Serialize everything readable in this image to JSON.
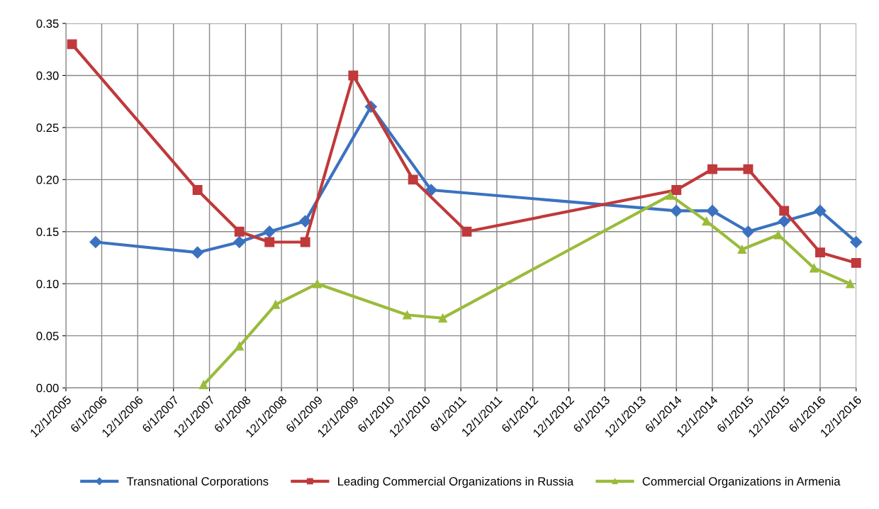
{
  "chart_data": {
    "type": "line",
    "xlim": [
      "2005-12-01",
      "2016-12-01"
    ],
    "xticks": [
      {
        "value": "2005-12-01",
        "label": "12/1/2005"
      },
      {
        "value": "2006-06-01",
        "label": "6/1/2006"
      },
      {
        "value": "2006-12-01",
        "label": "12/1/2006"
      },
      {
        "value": "2007-06-01",
        "label": "6/1/2007"
      },
      {
        "value": "2007-12-01",
        "label": "12/1/2007"
      },
      {
        "value": "2008-06-01",
        "label": "6/1/2008"
      },
      {
        "value": "2008-12-01",
        "label": "12/1/2008"
      },
      {
        "value": "2009-06-01",
        "label": "6/1/2009"
      },
      {
        "value": "2009-12-01",
        "label": "12/1/2009"
      },
      {
        "value": "2010-06-01",
        "label": "6/1/2010"
      },
      {
        "value": "2010-12-01",
        "label": "12/1/2010"
      },
      {
        "value": "2011-06-01",
        "label": "6/1/2011"
      },
      {
        "value": "2011-12-01",
        "label": "12/1/2011"
      },
      {
        "value": "2012-06-01",
        "label": "6/1/2012"
      },
      {
        "value": "2012-12-01",
        "label": "12/1/2012"
      },
      {
        "value": "2013-06-01",
        "label": "6/1/2013"
      },
      {
        "value": "2013-12-01",
        "label": "12/1/2013"
      },
      {
        "value": "2014-06-01",
        "label": "6/1/2014"
      },
      {
        "value": "2014-12-01",
        "label": "12/1/2014"
      },
      {
        "value": "2015-06-01",
        "label": "6/1/2015"
      },
      {
        "value": "2015-12-01",
        "label": "12/1/2015"
      },
      {
        "value": "2016-06-01",
        "label": "6/1/2016"
      },
      {
        "value": "2016-12-01",
        "label": "12/1/2016"
      }
    ],
    "ylim": [
      0,
      0.35
    ],
    "yticks": [
      {
        "value": 0,
        "label": "0.00"
      },
      {
        "value": 0.05,
        "label": "0.05"
      },
      {
        "value": 0.1,
        "label": "0.10"
      },
      {
        "value": 0.15,
        "label": "0.15"
      },
      {
        "value": 0.2,
        "label": "0.20"
      },
      {
        "value": 0.25,
        "label": "0.25"
      },
      {
        "value": 0.3,
        "label": "0.30"
      },
      {
        "value": 0.35,
        "label": "0.35"
      }
    ],
    "grid": true,
    "legend": "bottom",
    "line_style": "solid",
    "series": [
      {
        "name": "Transnational Corporations",
        "color": "#3b72c0",
        "marker": "diamond",
        "x": [
          "2006-05",
          "2007-10",
          "2008-05",
          "2008-10",
          "2009-04",
          "2010-03",
          "2011-01",
          "2014-06",
          "2014-12",
          "2015-06",
          "2015-12",
          "2016-06",
          "2016-12"
        ],
        "values": [
          0.14,
          0.13,
          0.14,
          0.15,
          0.16,
          0.27,
          0.19,
          0.17,
          0.17,
          0.15,
          0.16,
          0.17,
          0.14
        ]
      },
      {
        "name": "Leading Commercial Organizations in Russia",
        "color": "#c0393b",
        "marker": "square",
        "x": [
          "2006-01",
          "2007-10",
          "2008-05",
          "2008-10",
          "2009-04",
          "2009-12",
          "2010-10",
          "2011-07",
          "2014-06",
          "2014-12",
          "2015-06",
          "2015-12",
          "2016-06",
          "2016-12"
        ],
        "values": [
          0.33,
          0.19,
          0.15,
          0.14,
          0.14,
          0.3,
          0.2,
          0.15,
          0.19,
          0.21,
          0.21,
          0.17,
          0.13,
          0.12
        ]
      },
      {
        "name": "Commercial Organizations in Armenia",
        "color": "#9bbb3b",
        "marker": "triangle",
        "x": [
          "2007-11",
          "2008-05",
          "2008-11",
          "2009-06",
          "2010-09",
          "2011-03",
          "2014-05",
          "2014-11",
          "2015-05",
          "2015-11",
          "2016-05",
          "2016-11"
        ],
        "values": [
          0.003,
          0.04,
          0.08,
          0.1,
          0.07,
          0.067,
          0.185,
          0.16,
          0.133,
          0.147,
          0.115,
          0.1
        ]
      }
    ]
  }
}
